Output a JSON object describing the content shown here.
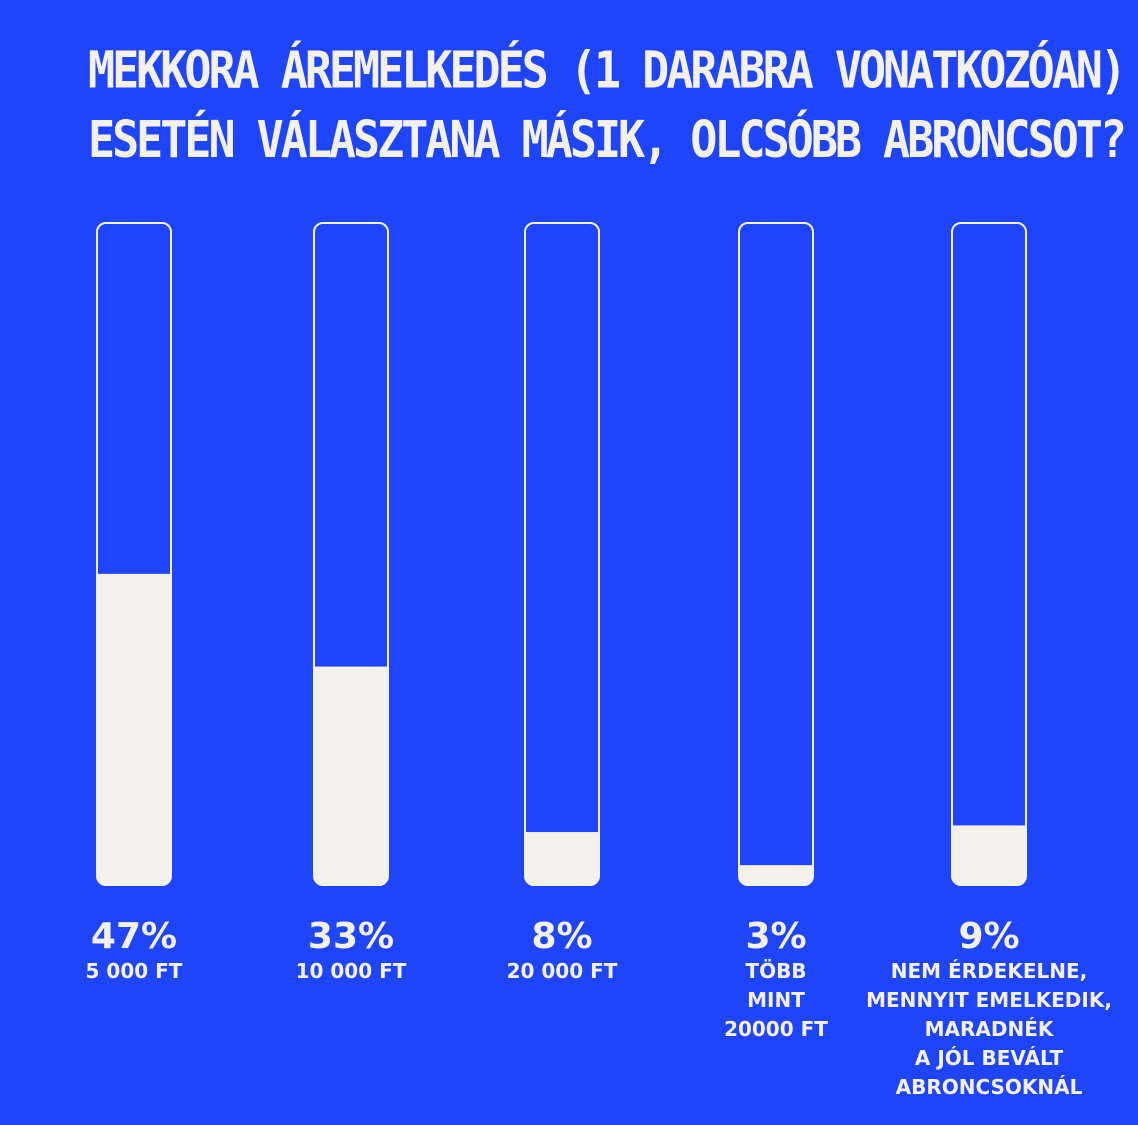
{
  "chart_data": {
    "type": "bar",
    "title_lines": [
      "MEKKORA ÁREMELKEDÉS (1 DARABRA VONATKOZÓAN)",
      "ESETÉN VÁLASZTANA MÁSIK, OLCSÓBB ABRONCSOT?"
    ],
    "ylim": [
      0,
      100
    ],
    "bars": [
      {
        "value": 47,
        "value_label": "47%",
        "label_lines": [
          "5 000 FT"
        ]
      },
      {
        "value": 33,
        "value_label": "33%",
        "label_lines": [
          "10 000 FT"
        ]
      },
      {
        "value": 8,
        "value_label": "8%",
        "label_lines": [
          "20 000 FT"
        ]
      },
      {
        "value": 3,
        "value_label": "3%",
        "label_lines": [
          "TÖBB",
          "MINT",
          "20000 FT"
        ]
      },
      {
        "value": 9,
        "value_label": "9%",
        "label_lines": [
          "NEM ÉRDEKELNE,",
          "MENNYIT EMELKEDIK,",
          "MARADNÉK",
          "A JÓL BEVÁLT",
          "ABRONCSOKNÁL"
        ]
      }
    ],
    "colors": {
      "background": "#1f45fb",
      "fill": "#f4f1ec",
      "outline": "#f4f1ec",
      "text": "#f4f1ec"
    }
  }
}
